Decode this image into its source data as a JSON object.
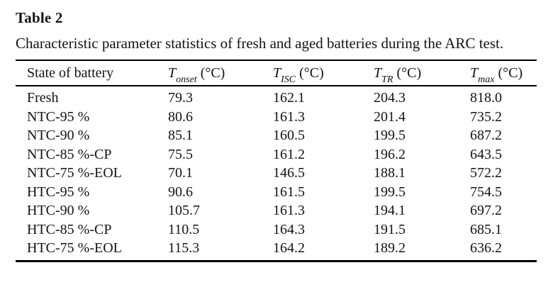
{
  "table": {
    "title_label": "Table 2",
    "caption": "Characteristic parameter statistics of fresh and aged batteries during the ARC test.",
    "columns": [
      {
        "label": "State of battery"
      },
      {
        "symbol": "T",
        "subscript": "onset",
        "unit": "(°C)"
      },
      {
        "symbol": "T",
        "subscript": "ISC",
        "unit": "(°C)"
      },
      {
        "symbol": "T",
        "subscript": "TR",
        "unit": "(°C)"
      },
      {
        "symbol": "T",
        "subscript": "max",
        "unit": "(°C)"
      }
    ],
    "rows": [
      [
        "Fresh",
        "79.3",
        "162.1",
        "204.3",
        "818.0"
      ],
      [
        "NTC-95 %",
        "80.6",
        "161.3",
        "201.4",
        "735.2"
      ],
      [
        "NTC-90 %",
        "85.1",
        "160.5",
        "199.5",
        "687.2"
      ],
      [
        "NTC-85 %-CP",
        "75.5",
        "161.2",
        "196.2",
        "643.5"
      ],
      [
        "NTC-75 %-EOL",
        "70.1",
        "146.5",
        "188.1",
        "572.2"
      ],
      [
        "HTC-95 %",
        "90.6",
        "161.5",
        "199.5",
        "754.5"
      ],
      [
        "HTC-90 %",
        "105.7",
        "161.3",
        "194.1",
        "697.2"
      ],
      [
        "HTC-85 %-CP",
        "110.5",
        "164.3",
        "191.5",
        "685.1"
      ],
      [
        "HTC-75 %-EOL",
        "115.3",
        "164.2",
        "189.2",
        "636.2"
      ]
    ]
  }
}
